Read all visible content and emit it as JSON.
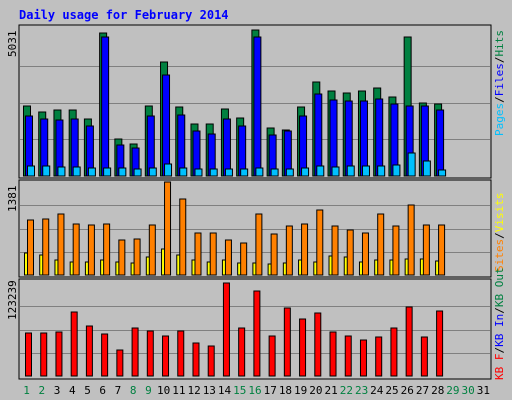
{
  "title": "Daily usage for February 2014",
  "colors": {
    "background": "#c0c0c0",
    "title": "#0000ff",
    "hits": "#008040",
    "files": "#0000ff",
    "pages": "#00c0ff",
    "visits": "#ffff00",
    "sites": "#ff8000",
    "kb_in": "#0000ff",
    "kb_out": "#008040",
    "kb_f": "#ff0000",
    "weekday_label": "#000000",
    "weekend_label": "#008040"
  },
  "panels": {
    "top": {
      "max_label": "5031",
      "legend": [
        "Pages",
        "Files",
        "Hits"
      ],
      "legend_slash": "/"
    },
    "middle": {
      "max_label": "1381",
      "legend": [
        "Sites",
        "Visits"
      ],
      "legend_slash": "/"
    },
    "bottom": {
      "max_label": "123239",
      "legend": [
        "KB F",
        "KB In",
        "KB Out"
      ],
      "legend_slash": "/"
    }
  },
  "x_labels": [
    "1",
    "2",
    "3",
    "4",
    "5",
    "6",
    "7",
    "8",
    "9",
    "10",
    "11",
    "12",
    "13",
    "14",
    "15",
    "16",
    "17",
    "18",
    "19",
    "20",
    "21",
    "22",
    "23",
    "24",
    "25",
    "26",
    "27",
    "28",
    "29",
    "30",
    "31"
  ],
  "chart_data": [
    {
      "type": "bar",
      "categories": [
        "1",
        "2",
        "3",
        "4",
        "5",
        "6",
        "7",
        "8",
        "9",
        "10",
        "11",
        "12",
        "13",
        "14",
        "15",
        "16",
        "17",
        "18",
        "19",
        "20",
        "21",
        "22",
        "23",
        "24",
        "25",
        "26",
        "27",
        "28"
      ],
      "series": [
        {
          "name": "Hits",
          "values": [
            2380,
            2200,
            2250,
            2250,
            1950,
            4900,
            1250,
            1100,
            2400,
            3900,
            2350,
            1780,
            1780,
            2300,
            2000,
            5000,
            1650,
            1580,
            2350,
            3200,
            2900,
            2850,
            2900,
            3000,
            2700,
            4750,
            2500,
            2450
          ]
        },
        {
          "name": "Files",
          "values": [
            2050,
            1950,
            1900,
            1950,
            1700,
            4750,
            1050,
            950,
            2050,
            3450,
            2100,
            1550,
            1450,
            1950,
            1700,
            4750,
            1400,
            1550,
            2050,
            2800,
            2600,
            2550,
            2550,
            2650,
            2450,
            2400,
            2400,
            2250
          ]
        },
        {
          "name": "Pages",
          "values": [
            350,
            330,
            320,
            300,
            270,
            280,
            290,
            240,
            260,
            420,
            290,
            250,
            230,
            240,
            230,
            270,
            250,
            240,
            280,
            330,
            320,
            340,
            330,
            350,
            360,
            800,
            520,
            200
          ]
        }
      ],
      "ylim": [
        0,
        5031
      ]
    },
    {
      "type": "bar",
      "categories": [
        "1",
        "2",
        "3",
        "4",
        "5",
        "6",
        "7",
        "8",
        "9",
        "10",
        "11",
        "12",
        "13",
        "14",
        "15",
        "16",
        "17",
        "18",
        "19",
        "20",
        "21",
        "22",
        "23",
        "24",
        "25",
        "26",
        "27",
        "28"
      ],
      "series": [
        {
          "name": "Visits",
          "values": [
            320,
            300,
            230,
            200,
            200,
            230,
            190,
            180,
            270,
            380,
            300,
            220,
            200,
            220,
            180,
            180,
            170,
            180,
            230,
            190,
            280,
            260,
            200,
            230,
            230,
            240,
            240,
            210
          ]
        },
        {
          "name": "Sites",
          "values": [
            820,
            830,
            900,
            760,
            740,
            750,
            520,
            540,
            740,
            1381,
            1130,
            630,
            620,
            520,
            470,
            900,
            610,
            730,
            760,
            960,
            730,
            670,
            620,
            900,
            730,
            1040,
            740,
            740
          ]
        }
      ],
      "ylim": [
        0,
        1381
      ]
    },
    {
      "type": "bar",
      "categories": [
        "1",
        "2",
        "3",
        "4",
        "5",
        "6",
        "7",
        "8",
        "9",
        "10",
        "11",
        "12",
        "13",
        "14",
        "15",
        "16",
        "17",
        "18",
        "19",
        "20",
        "21",
        "22",
        "23",
        "24",
        "25",
        "26",
        "27",
        "28"
      ],
      "series": [
        {
          "name": "KB F",
          "values": [
            57000,
            57000,
            58000,
            85000,
            66000,
            56000,
            35000,
            63000,
            60000,
            53000,
            59000,
            44000,
            40000,
            123239,
            64000,
            113000,
            53000,
            90000,
            76000,
            84000,
            58000,
            53000,
            48000,
            52000,
            63000,
            91000,
            52000,
            86000
          ]
        }
      ],
      "ylim": [
        0,
        123239
      ]
    }
  ]
}
